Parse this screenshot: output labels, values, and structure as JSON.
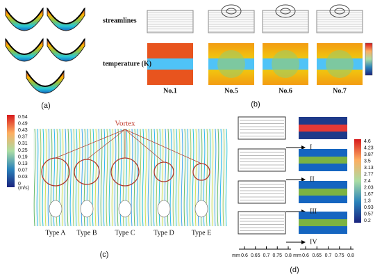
{
  "panels": {
    "a": {
      "label": "(a)"
    },
    "b": {
      "label": "(b)",
      "row_labels": [
        "streamlines",
        "temperature (K)"
      ],
      "cases": [
        "No.1",
        "No.5",
        "No.6",
        "No.7"
      ]
    },
    "c": {
      "label": "(c)",
      "annotation": "Vortex",
      "types": [
        "Type A",
        "Type B",
        "Type C",
        "Type D",
        "Type E"
      ],
      "colorbar": {
        "unit": "(m/s)",
        "ticks": [
          0.54,
          0.49,
          0.43,
          0.37,
          0.31,
          0.25,
          0.19,
          0.13,
          0.07,
          0.03,
          0
        ]
      }
    },
    "d": {
      "label": "(d)",
      "designs": [
        "I",
        "II",
        "III",
        "IV"
      ],
      "colorbar": {
        "ticks": [
          4.6,
          4.23,
          3.87,
          3.5,
          3.13,
          2.77,
          2.4,
          2.03,
          1.67,
          1.3,
          0.93,
          0.57,
          0.2
        ]
      },
      "scales": [
        {
          "unit": "mm",
          "ticks": [
            0.6,
            0.65,
            0.7,
            0.75,
            0.8
          ]
        },
        {
          "unit": "mm",
          "ticks": [
            0.6,
            0.65,
            0.7,
            0.75,
            0.8
          ]
        }
      ]
    }
  }
}
